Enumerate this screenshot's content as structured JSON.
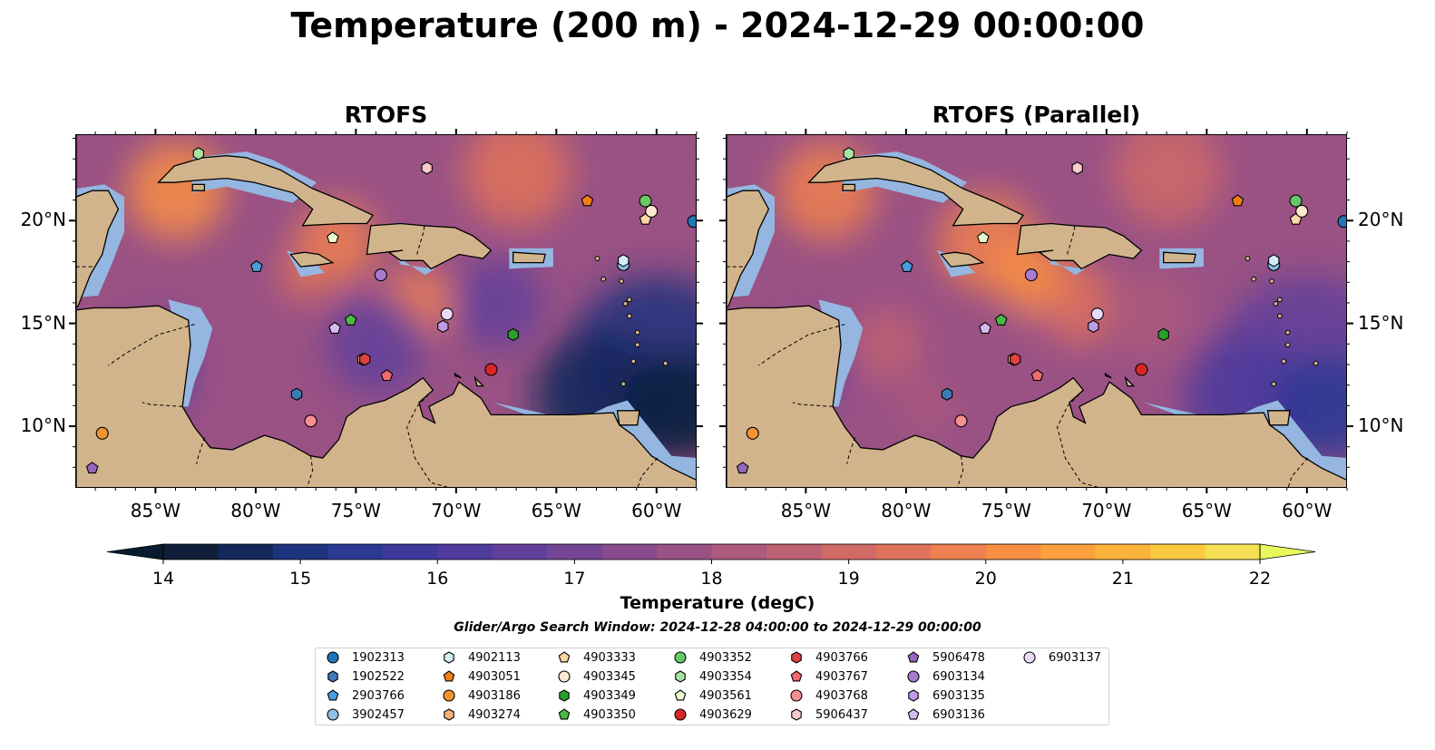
{
  "title": "Temperature (200 m) - 2024-12-29 00:00:00",
  "panels": [
    {
      "title": "RTOFS",
      "variant": "rtofs"
    },
    {
      "title": "RTOFS (Parallel)",
      "variant": "parallel"
    }
  ],
  "map_extent": {
    "lon_min": -89,
    "lon_max": -58,
    "lat_min": 7,
    "lat_max": 24.2
  },
  "lon_ticks": [
    -85,
    -80,
    -75,
    -70,
    -65,
    -60
  ],
  "lon_tick_labels": [
    "85°W",
    "80°W",
    "75°W",
    "70°W",
    "65°W",
    "60°W"
  ],
  "lat_ticks": [
    10,
    15,
    20
  ],
  "lat_tick_labels": [
    "10°N",
    "15°N",
    "20°N"
  ],
  "colors": {
    "land": "#d2b48c",
    "shelf": "#94b6e0",
    "border": "#000000"
  },
  "colorbar": {
    "min": 14,
    "max": 22,
    "step": 0.5,
    "ticks": [
      "14",
      "15",
      "16",
      "17",
      "18",
      "19",
      "20",
      "21",
      "22"
    ],
    "colors": [
      "#0f1f3a",
      "#13285a",
      "#1d337d",
      "#2c3a93",
      "#3d3a9c",
      "#4e3b9c",
      "#623f9b",
      "#744595",
      "#884c8d",
      "#9a5285",
      "#ac5a7d",
      "#bf6273",
      "#cf6a67",
      "#e0735b",
      "#ef8050",
      "#f88e44",
      "#fba03d",
      "#fcb43c",
      "#fbc940",
      "#f5e055"
    ],
    "under_color": "#0a1b2f",
    "over_color": "#e8fa5b",
    "label": "Temperature (degC)"
  },
  "search_window": "Glider/Argo Search Window: 2024-12-28 04:00:00 to 2024-12-29 00:00:00",
  "floats": [
    {
      "id": "1902313",
      "shape": "circle",
      "color": "#1f77b4",
      "lon": -58.2,
      "lat": 20.0
    },
    {
      "id": "1902522",
      "shape": "hexagon",
      "color": "#3d7ab8",
      "lon": -78.0,
      "lat": 11.6
    },
    {
      "id": "2903766",
      "shape": "pentagon",
      "color": "#4d9bd8",
      "lon": -80.0,
      "lat": 17.8
    },
    {
      "id": "3902457",
      "shape": "circle",
      "color": "#8ec0e8",
      "lon": -61.7,
      "lat": 17.9
    },
    {
      "id": "4902113",
      "shape": "hexagon",
      "color": "#d3ecf8",
      "lon": -61.7,
      "lat": 18.1
    },
    {
      "id": "4903051",
      "shape": "pentagon",
      "color": "#f07f12",
      "lon": -63.5,
      "lat": 21.0
    },
    {
      "id": "4903186",
      "shape": "circle",
      "color": "#f29333",
      "lon": -87.7,
      "lat": 9.7
    },
    {
      "id": "4903274",
      "shape": "hexagon",
      "color": "#f7b27a",
      "lon": -74.7,
      "lat": 13.3
    },
    {
      "id": "4903333",
      "shape": "pentagon",
      "color": "#fcd6a6",
      "lon": -60.6,
      "lat": 20.1
    },
    {
      "id": "4903345",
      "shape": "circle",
      "color": "#fde8d0",
      "lon": -60.3,
      "lat": 20.5
    },
    {
      "id": "4903349",
      "shape": "hexagon",
      "color": "#2ca02c",
      "lon": -67.2,
      "lat": 14.5
    },
    {
      "id": "4903350",
      "shape": "pentagon",
      "color": "#4cb944",
      "lon": -75.3,
      "lat": 15.2
    },
    {
      "id": "4903352",
      "shape": "circle",
      "color": "#66c965",
      "lon": -60.6,
      "lat": 21.0
    },
    {
      "id": "4903354",
      "shape": "hexagon",
      "color": "#a9e3a2",
      "lon": -82.9,
      "lat": 23.3
    },
    {
      "id": "4903561",
      "shape": "pentagon",
      "color": "#e8fbcc",
      "lon": -76.2,
      "lat": 19.2
    },
    {
      "id": "4903629",
      "shape": "circle",
      "color": "#d62728",
      "lon": -68.3,
      "lat": 12.8
    },
    {
      "id": "4903766",
      "shape": "hexagon",
      "color": "#e34141",
      "lon": -74.6,
      "lat": 13.3
    },
    {
      "id": "4903767",
      "shape": "pentagon",
      "color": "#f26a6a",
      "lon": -73.5,
      "lat": 12.5
    },
    {
      "id": "4903768",
      "shape": "circle",
      "color": "#f59090",
      "lon": -77.3,
      "lat": 10.3
    },
    {
      "id": "5906437",
      "shape": "hexagon",
      "color": "#fbcbcb",
      "lon": -71.5,
      "lat": 22.6
    },
    {
      "id": "5906478",
      "shape": "pentagon",
      "color": "#9467bd",
      "lon": -88.2,
      "lat": 8.0
    },
    {
      "id": "6903134",
      "shape": "circle",
      "color": "#a77cd0",
      "lon": -73.8,
      "lat": 17.4
    },
    {
      "id": "6903135",
      "shape": "hexagon",
      "color": "#c09ce6",
      "lon": -70.7,
      "lat": 14.9
    },
    {
      "id": "6903136",
      "shape": "pentagon",
      "color": "#d6bbf1",
      "lon": -76.1,
      "lat": 14.8
    },
    {
      "id": "6903137",
      "shape": "circle",
      "color": "#ecd9fa",
      "lon": -70.5,
      "lat": 15.5
    }
  ]
}
